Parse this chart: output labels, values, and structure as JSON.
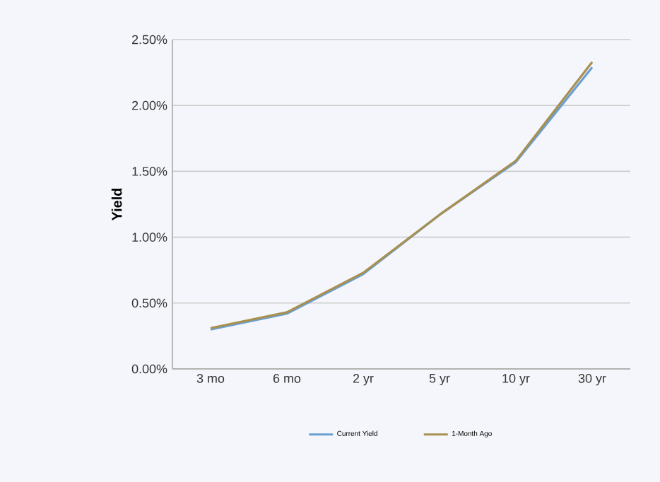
{
  "chart_data": {
    "type": "line",
    "ylabel": "Yield",
    "categories": [
      "3 mo",
      "6 mo",
      "2 yr",
      "5 yr",
      "10 yr",
      "30 yr"
    ],
    "series": [
      {
        "name": "Current Yield",
        "color": "#6a9fd4",
        "values": [
          0.3,
          0.42,
          0.72,
          1.17,
          1.57,
          2.29
        ]
      },
      {
        "name": "1-Month Ago",
        "color": "#a89050",
        "values": [
          0.31,
          0.43,
          0.73,
          1.17,
          1.58,
          2.33
        ]
      }
    ],
    "ylim": [
      0,
      2.5
    ],
    "yticks": [
      {
        "value": 0,
        "label": "0.00%"
      },
      {
        "value": 0.5,
        "label": "0.50%"
      },
      {
        "value": 1,
        "label": "1.00%"
      },
      {
        "value": 1.5,
        "label": "1.50%"
      },
      {
        "value": 2,
        "label": "2.00%"
      },
      {
        "value": 2.5,
        "label": "2.50%"
      }
    ],
    "grid": "y",
    "legend": "bottom",
    "marker": "none",
    "line_style": "solid"
  }
}
